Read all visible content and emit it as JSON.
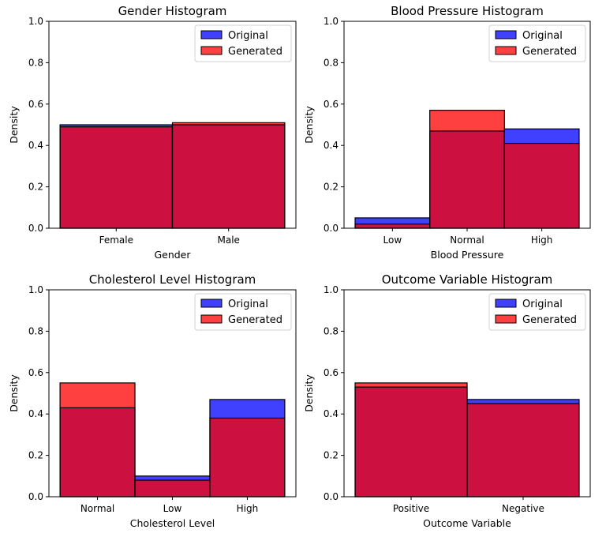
{
  "chart_data": [
    {
      "type": "bar",
      "title": "Gender Histogram",
      "xlabel": "Gender",
      "ylabel": "Density",
      "ylim": [
        0,
        1.0
      ],
      "yticks": [
        "0.0",
        "0.2",
        "0.4",
        "0.6",
        "0.8",
        "1.0"
      ],
      "categories": [
        "Female",
        "Male"
      ],
      "series": [
        {
          "name": "Original",
          "color": "#0000ff",
          "values": [
            0.5,
            0.5
          ]
        },
        {
          "name": "Generated",
          "color": "#ff0000",
          "values": [
            0.49,
            0.51
          ]
        }
      ],
      "overlap_color": "#cc1040",
      "legend": "top-right"
    },
    {
      "type": "bar",
      "title": "Blood Pressure Histogram",
      "xlabel": "Blood Pressure",
      "ylabel": "Density",
      "ylim": [
        0,
        1.0
      ],
      "yticks": [
        "0.0",
        "0.2",
        "0.4",
        "0.6",
        "0.8",
        "1.0"
      ],
      "categories": [
        "Low",
        "Normal",
        "High"
      ],
      "series": [
        {
          "name": "Original",
          "color": "#0000ff",
          "values": [
            0.05,
            0.47,
            0.48
          ]
        },
        {
          "name": "Generated",
          "color": "#ff0000",
          "values": [
            0.02,
            0.57,
            0.41
          ]
        }
      ],
      "overlap_color": "#cc1040",
      "legend": "top-right"
    },
    {
      "type": "bar",
      "title": "Cholesterol Level Histogram",
      "xlabel": "Cholesterol Level",
      "ylabel": "Density",
      "ylim": [
        0,
        1.0
      ],
      "yticks": [
        "0.0",
        "0.2",
        "0.4",
        "0.6",
        "0.8",
        "1.0"
      ],
      "categories": [
        "Normal",
        "Low",
        "High"
      ],
      "series": [
        {
          "name": "Original",
          "color": "#0000ff",
          "values": [
            0.43,
            0.1,
            0.47
          ]
        },
        {
          "name": "Generated",
          "color": "#ff0000",
          "values": [
            0.55,
            0.08,
            0.38
          ]
        }
      ],
      "overlap_color": "#cc1040",
      "legend": "top-right"
    },
    {
      "type": "bar",
      "title": "Outcome Variable Histogram",
      "xlabel": "Outcome Variable",
      "ylabel": "Density",
      "ylim": [
        0,
        1.0
      ],
      "yticks": [
        "0.0",
        "0.2",
        "0.4",
        "0.6",
        "0.8",
        "1.0"
      ],
      "categories": [
        "Positive",
        "Negative"
      ],
      "series": [
        {
          "name": "Original",
          "color": "#0000ff",
          "values": [
            0.53,
            0.47
          ]
        },
        {
          "name": "Generated",
          "color": "#ff0000",
          "values": [
            0.55,
            0.45
          ]
        }
      ],
      "overlap_color": "#cc1040",
      "legend": "top-right"
    }
  ]
}
